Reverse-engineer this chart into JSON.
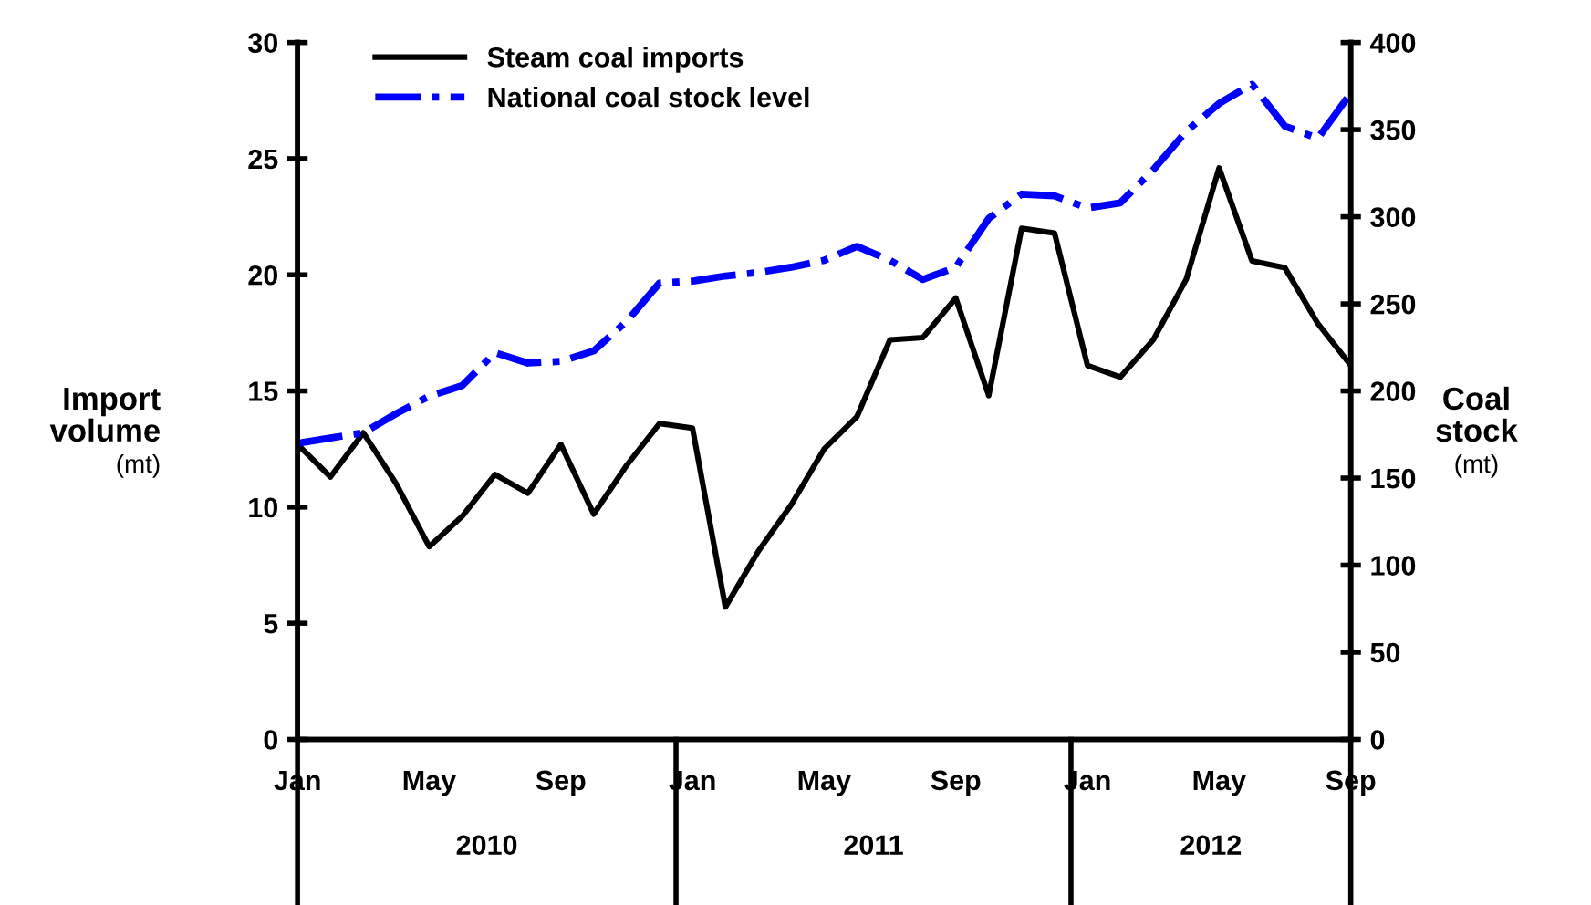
{
  "chart_data": {
    "type": "line",
    "ylabel": "Import\nvolume\n(mt)",
    "y2label": "Coal\nstock\n(mt)",
    "categories": [
      "Jan",
      null,
      null,
      null,
      "May",
      null,
      null,
      null,
      "Sep",
      null,
      null,
      null,
      "Jan",
      null,
      null,
      null,
      "May",
      null,
      null,
      null,
      "Sep",
      null,
      null,
      null,
      "Jan",
      null,
      null,
      null,
      "May",
      null,
      null,
      null,
      "Sep"
    ],
    "series": [
      {
        "name": "Steam coal imports",
        "color": "#000000",
        "line_style": "solid",
        "values": [
          12.7,
          11.3,
          13.2,
          11.0,
          8.3,
          9.6,
          11.4,
          10.6,
          12.7,
          9.7,
          11.8,
          13.6,
          13.4,
          5.7,
          8.1,
          10.1,
          12.5,
          13.9,
          17.2,
          17.3,
          19.0,
          14.8,
          22.0,
          21.8,
          16.1,
          15.6,
          17.2,
          19.8,
          24.6,
          20.6,
          20.3,
          17.9,
          16.1
        ]
      },
      {
        "name": "National coal stock level",
        "color": "#0000ff",
        "line_style": "dashdot",
        "axis": "y2",
        "values": [
          170,
          173,
          176,
          187,
          197,
          203,
          222,
          216,
          217,
          223,
          240,
          262,
          263,
          266,
          268,
          271,
          275,
          283,
          275,
          264,
          271,
          299,
          313,
          312,
          305,
          308,
          327,
          349,
          365,
          376,
          352,
          345,
          371
        ]
      }
    ],
    "annotations": [
      "2010",
      "2011",
      "2012"
    ],
    "ylim": [
      0,
      30
    ],
    "yticks": [
      0,
      5,
      10,
      15,
      20,
      25,
      30
    ],
    "y2lim": [
      0,
      400
    ],
    "y2ticks": [
      0,
      50,
      100,
      150,
      200,
      250,
      300,
      350,
      400
    ],
    "grid": false,
    "legend": "top left"
  }
}
